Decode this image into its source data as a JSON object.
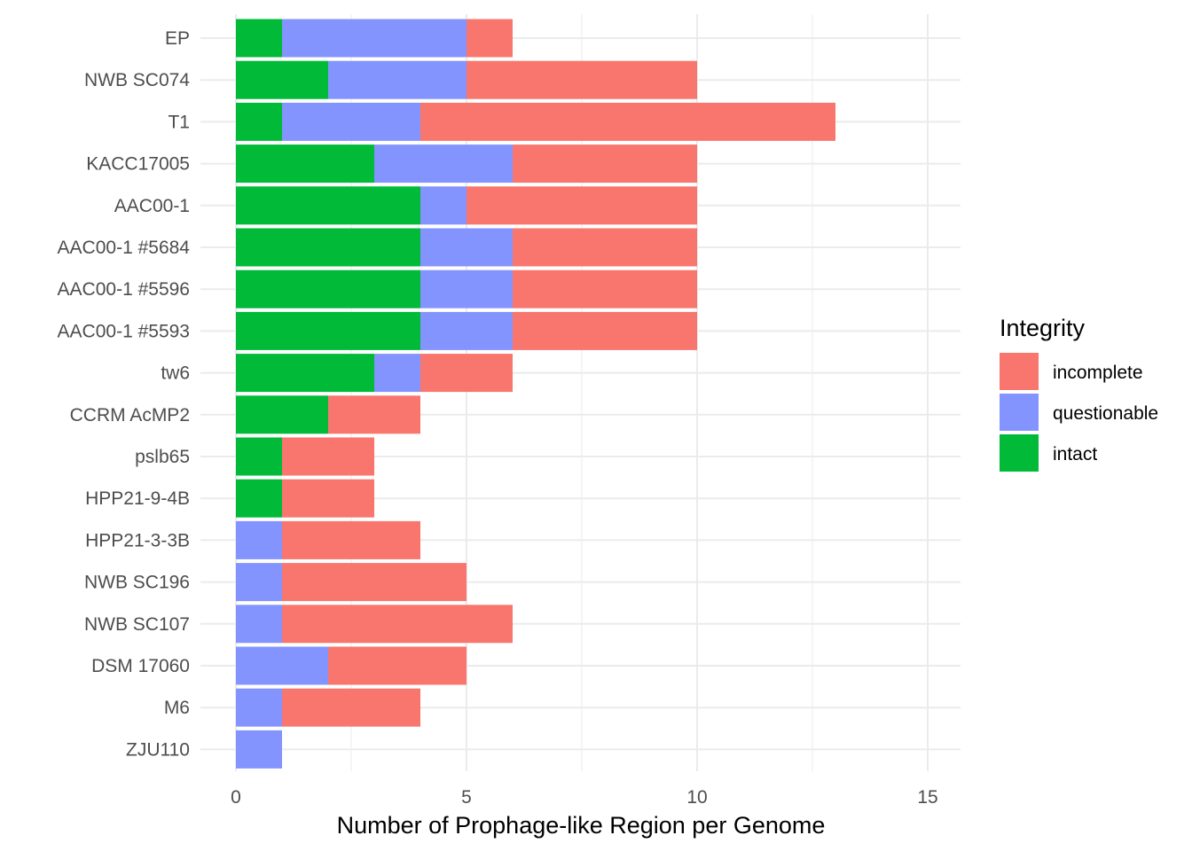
{
  "chart_data": {
    "type": "bar",
    "orientation": "horizontal",
    "stacked": true,
    "categories": [
      "EP",
      "NWB SC074",
      "T1",
      "KACC17005",
      "AAC00-1",
      "AAC00-1 #5684",
      "AAC00-1 #5596",
      "AAC00-1 #5593",
      "tw6",
      "CCRM AcMP2",
      "pslb65",
      "HPP21-9-4B",
      "HPP21-3-3B",
      "NWB SC196",
      "NWB SC107",
      "DSM 17060",
      "M6",
      "ZJU110"
    ],
    "series": [
      {
        "name": "intact",
        "color": "#00BA38",
        "values": [
          1,
          2,
          1,
          3,
          4,
          4,
          4,
          4,
          3,
          2,
          1,
          1,
          0,
          0,
          0,
          0,
          0,
          0
        ]
      },
      {
        "name": "questionable",
        "color": "#8494FF",
        "values": [
          4,
          3,
          3,
          3,
          1,
          2,
          2,
          2,
          1,
          0,
          0,
          0,
          1,
          1,
          1,
          2,
          1,
          1
        ]
      },
      {
        "name": "incomplete",
        "color": "#F8766D",
        "values": [
          1,
          5,
          9,
          4,
          5,
          4,
          4,
          4,
          2,
          2,
          2,
          2,
          3,
          4,
          5,
          3,
          3,
          0
        ]
      }
    ],
    "xlabel": "Number of Prophage-like Region per Genome",
    "ylabel": "",
    "xlim": [
      0,
      15.75
    ],
    "xticks": [
      0,
      5,
      10,
      15
    ],
    "xtick_labels": [
      "0",
      "5",
      "10",
      "15"
    ],
    "grid": true,
    "legend": {
      "title": "Integrity",
      "position": "right",
      "entries": [
        {
          "label": "incomplete",
          "color": "#F8766D"
        },
        {
          "label": "questionable",
          "color": "#8494FF"
        },
        {
          "label": "intact",
          "color": "#00BA38"
        }
      ]
    }
  }
}
